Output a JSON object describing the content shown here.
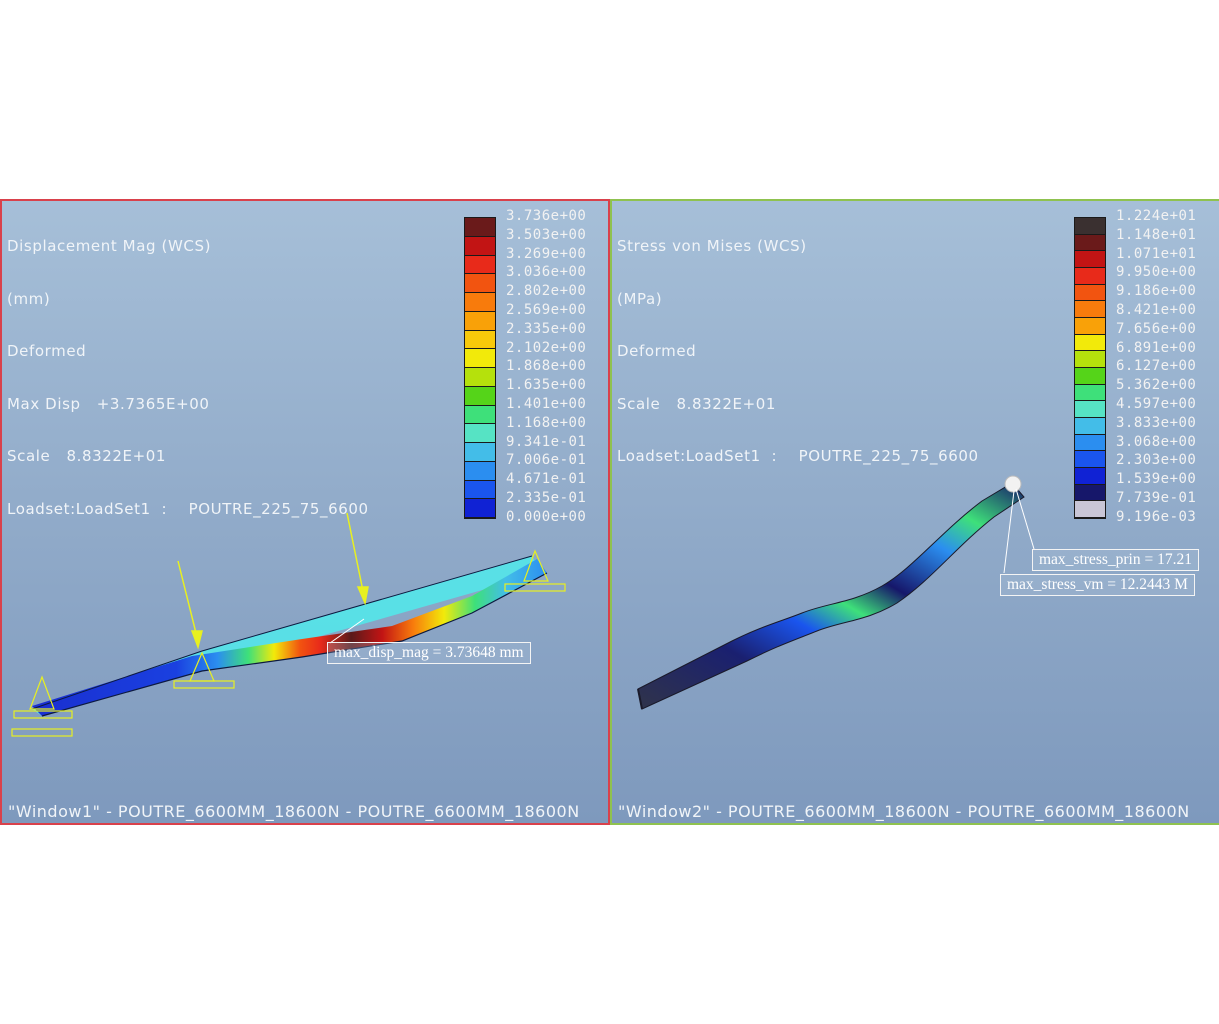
{
  "window1": {
    "header": [
      "Displacement Mag (WCS)",
      "(mm)",
      "Deformed",
      "Max Disp   +3.7365E+00",
      "Scale   8.8322E+01",
      "Loadset:LoadSet1  :    POUTRE_225_75_6600"
    ],
    "footer": "\"Window1\" - POUTRE_6600MM_18600N - POUTRE_6600MM_18600N",
    "legend_labels": [
      "3.736e+00",
      "3.503e+00",
      "3.269e+00",
      "3.036e+00",
      "2.802e+00",
      "2.569e+00",
      "2.335e+00",
      "2.102e+00",
      "1.868e+00",
      "1.635e+00",
      "1.401e+00",
      "1.168e+00",
      "9.341e-01",
      "7.006e-01",
      "4.671e-01",
      "2.335e-01",
      "0.000e+00"
    ],
    "legend_colors": [
      "#6a1a1a",
      "#c21414",
      "#e82a1a",
      "#f25410",
      "#f87b0c",
      "#f9a108",
      "#f8c90a",
      "#f2ea0a",
      "#b5e10c",
      "#55d419",
      "#3ee07a",
      "#56e3c4",
      "#43bde8",
      "#2b8ef0",
      "#1a55ee",
      "#1022d4"
    ],
    "callout": "max_disp_mag = 3.73648  mm"
  },
  "window2": {
    "header": [
      "Stress von Mises (WCS)",
      "(MPa)",
      "Deformed",
      "Scale   8.8322E+01",
      "Loadset:LoadSet1  :    POUTRE_225_75_6600"
    ],
    "footer": "\"Window2\" - POUTRE_6600MM_18600N - POUTRE_6600MM_18600N",
    "legend_labels": [
      "1.224e+01",
      "1.148e+01",
      "1.071e+01",
      "9.950e+00",
      "9.186e+00",
      "8.421e+00",
      "7.656e+00",
      "6.891e+00",
      "6.127e+00",
      "5.362e+00",
      "4.597e+00",
      "3.833e+00",
      "3.068e+00",
      "2.303e+00",
      "1.539e+00",
      "7.739e-01",
      "9.196e-03"
    ],
    "legend_colors": [
      "#3a3030",
      "#6a1a1a",
      "#c21414",
      "#e82a1a",
      "#f25410",
      "#f87b0c",
      "#f9a108",
      "#f2ea0a",
      "#b5e10c",
      "#55d419",
      "#3ee07a",
      "#56e3c4",
      "#43bde8",
      "#2b8ef0",
      "#1a55ee",
      "#1022d4",
      "#16176a",
      "#c9c6d6"
    ],
    "callout_prin": "max_stress_prin = 17.21",
    "callout_vm": "max_stress_vm = 12.2443  M"
  }
}
